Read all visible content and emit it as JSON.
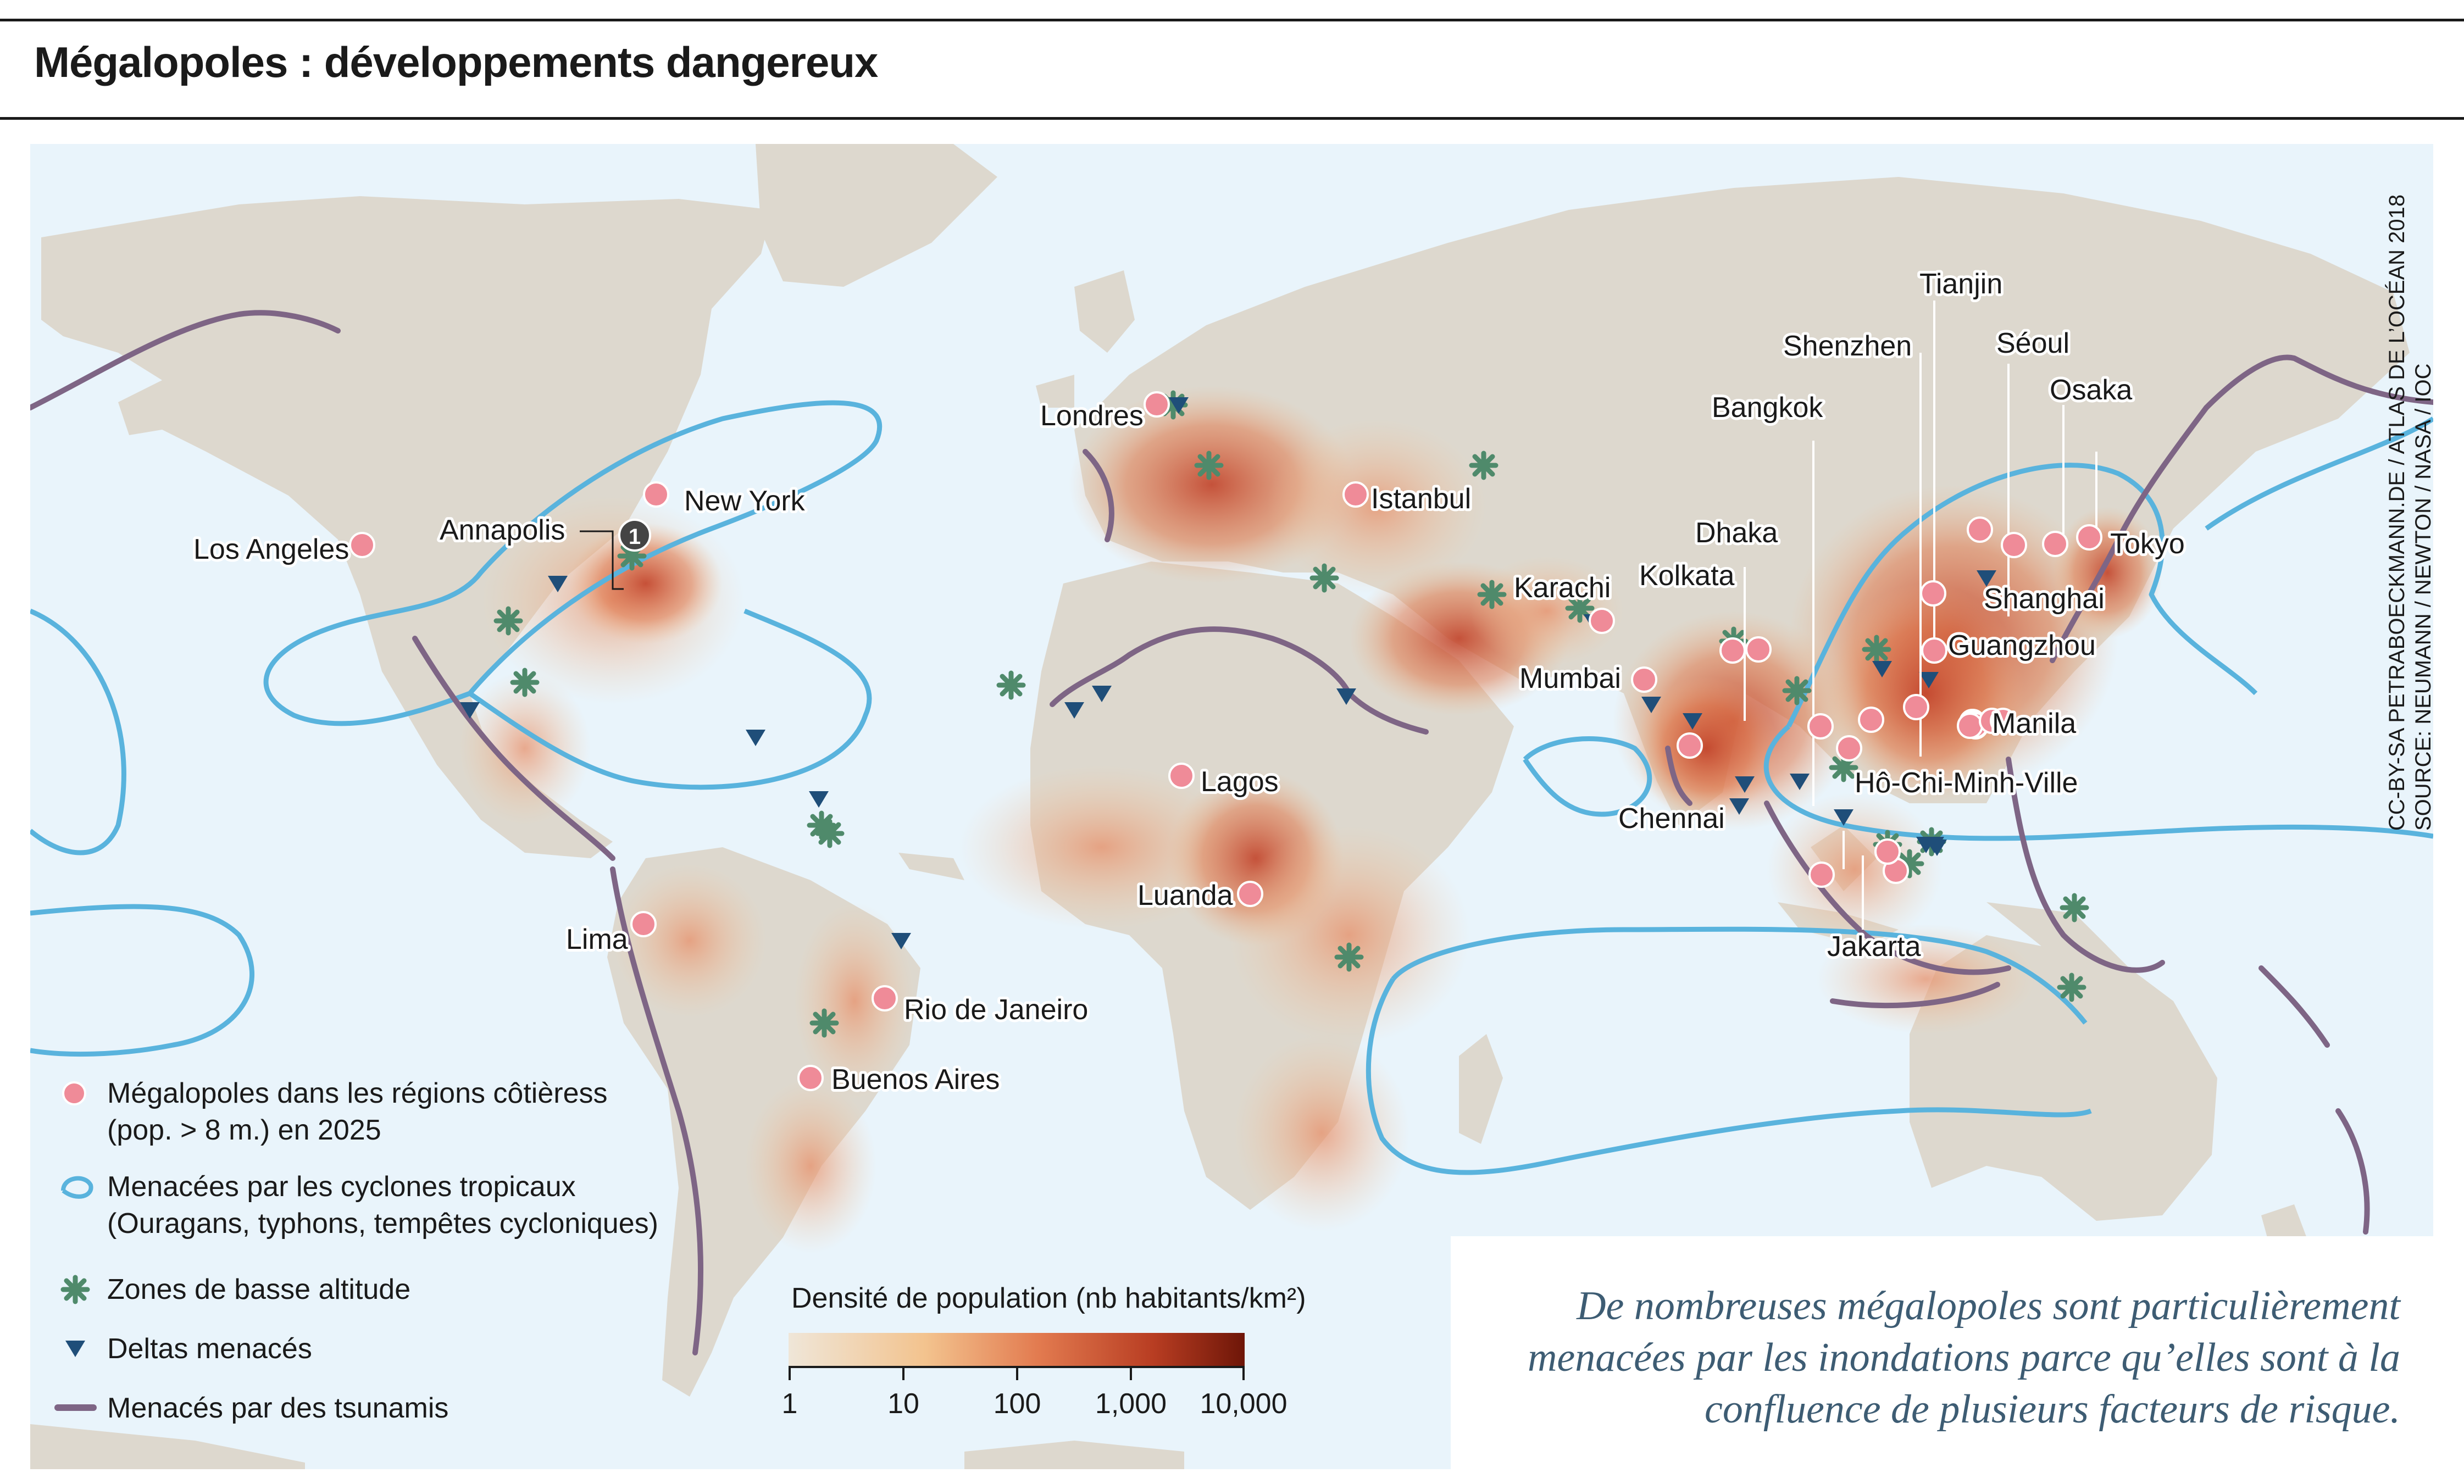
{
  "title": "Mégalopoles : développements dangereux",
  "credit": {
    "line1": "CC-BY-SA PETRABOECKMANN.DE / ATLAS DE L’OCÉAN 2018",
    "line2": "SOURCE: NEUMANN / NEWTON / NASA / IOC"
  },
  "cities": [
    {
      "name": "Los Angeles"
    },
    {
      "name": "New York"
    },
    {
      "name": "Annapolis",
      "marker": "1"
    },
    {
      "name": "Lima"
    },
    {
      "name": "Rio de Janeiro"
    },
    {
      "name": "Buenos Aires"
    },
    {
      "name": "Londres"
    },
    {
      "name": "Istanbul"
    },
    {
      "name": "Lagos"
    },
    {
      "name": "Luanda"
    },
    {
      "name": "Karachi"
    },
    {
      "name": "Mumbai"
    },
    {
      "name": "Chennai"
    },
    {
      "name": "Kolkata"
    },
    {
      "name": "Dhaka"
    },
    {
      "name": "Bangkok"
    },
    {
      "name": "Shenzhen"
    },
    {
      "name": "Tianjin"
    },
    {
      "name": "Séoul"
    },
    {
      "name": "Osaka"
    },
    {
      "name": "Tokyo"
    },
    {
      "name": "Shanghai"
    },
    {
      "name": "Guangzhou"
    },
    {
      "name": "Manila"
    },
    {
      "name": "Hô-Chi-Minh-Ville"
    },
    {
      "name": "Jakarta"
    }
  ],
  "legend": {
    "items": [
      {
        "label": "Mégalopoles dans les régions côtièress",
        "label2": "(pop. > 8 m.) en 2025",
        "symbol": "pink-dot"
      },
      {
        "label": "Menacées par les cyclones tropicaux",
        "label2": "(Ouragans, typhons, tempêtes cycloniques)",
        "symbol": "blue-outline"
      },
      {
        "label": "Zones de basse altitude",
        "symbol": "green-asterisk"
      },
      {
        "label": "Deltas menacés",
        "symbol": "blue-triangle"
      },
      {
        "label": "Menacés par des tsunamis",
        "symbol": "purple-line"
      }
    ],
    "density": {
      "title": "Densité de population (nb habitants/km²)",
      "ticks": [
        "1",
        "10",
        "100",
        "1,000",
        "10,000"
      ],
      "colors": [
        "#efe6d8",
        "#f3c38e",
        "#e27a4f",
        "#b83d22",
        "#6e1608"
      ]
    }
  },
  "colors": {
    "ocean": "#e9f4fb",
    "land": "#ddd8ce",
    "city": "#ef8b98",
    "cyclone": "#59b3dd",
    "tsunami": "#7e6585",
    "asterisk": "#4f8a6b",
    "delta": "#1f4e79"
  },
  "note": "De nombreuses mégalopoles sont particulièrement menacées par les inondations parce qu’elles sont à la confluence de plusieurs facteurs de risque."
}
